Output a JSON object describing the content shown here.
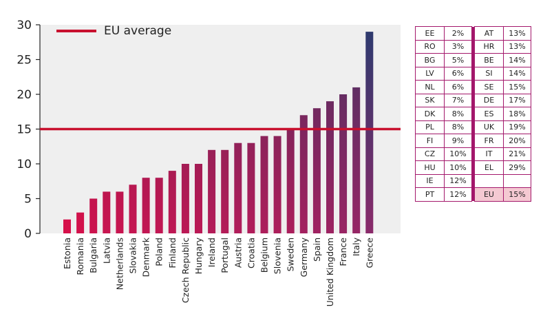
{
  "chart_data": {
    "type": "bar",
    "categories": [
      "Estonia",
      "Romania",
      "Bulgaria",
      "Latvia",
      "Netherlands",
      "Slovakia",
      "Denmark",
      "Poland",
      "Finland",
      "Czech Republic",
      "Hungary",
      "Ireland",
      "Portugal",
      "Austria",
      "Croatia",
      "Belgium",
      "Slovenia",
      "Sweden",
      "Germany",
      "Spain",
      "United Kingdom",
      "France",
      "Italy",
      "Greece"
    ],
    "values": [
      2,
      3,
      5,
      6,
      6,
      7,
      8,
      8,
      9,
      10,
      10,
      12,
      12,
      13,
      13,
      14,
      14,
      15,
      17,
      18,
      19,
      20,
      21,
      29
    ],
    "ylim": [
      0,
      30
    ],
    "yticks": [
      0,
      5,
      10,
      15,
      20,
      25,
      30
    ],
    "reference_line": {
      "label": "EU average",
      "value": 15,
      "color": "#c8102e"
    },
    "colors": {
      "low": "#d6104a",
      "high": "#2e3a6e",
      "mid": "#8a2a6a"
    },
    "title": "",
    "xlabel": "",
    "ylabel": ""
  },
  "table": {
    "left": [
      {
        "code": "EE",
        "value": "2%"
      },
      {
        "code": "RO",
        "value": "3%"
      },
      {
        "code": "BG",
        "value": "5%"
      },
      {
        "code": "LV",
        "value": "6%"
      },
      {
        "code": "NL",
        "value": "6%"
      },
      {
        "code": "SK",
        "value": "7%"
      },
      {
        "code": "DK",
        "value": "8%"
      },
      {
        "code": "PL",
        "value": "8%"
      },
      {
        "code": "FI",
        "value": "9%"
      },
      {
        "code": "CZ",
        "value": "10%"
      },
      {
        "code": "HU",
        "value": "10%"
      },
      {
        "code": "IE",
        "value": "12%"
      },
      {
        "code": "PT",
        "value": "12%"
      }
    ],
    "right": [
      {
        "code": "AT",
        "value": "13%"
      },
      {
        "code": "HR",
        "value": "13%"
      },
      {
        "code": "BE",
        "value": "14%"
      },
      {
        "code": "SI",
        "value": "14%"
      },
      {
        "code": "SE",
        "value": "15%"
      },
      {
        "code": "DE",
        "value": "17%"
      },
      {
        "code": "ES",
        "value": "18%"
      },
      {
        "code": "UK",
        "value": "19%"
      },
      {
        "code": "FR",
        "value": "20%"
      },
      {
        "code": "IT",
        "value": "21%"
      },
      {
        "code": "EL",
        "value": "29%"
      },
      {
        "code": "",
        "value": ""
      },
      {
        "code": "EU",
        "value": "15%"
      }
    ]
  }
}
